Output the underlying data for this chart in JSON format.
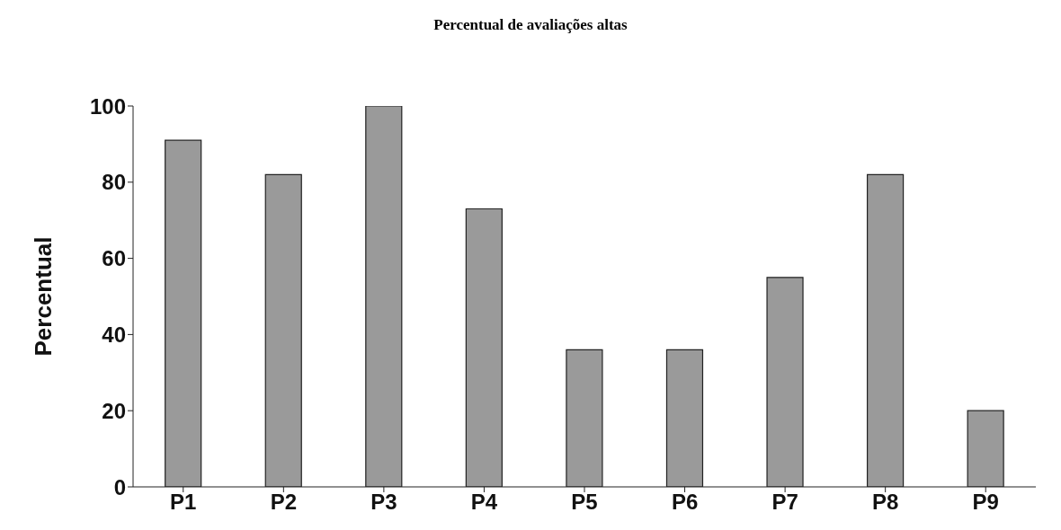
{
  "chart_data": {
    "type": "bar",
    "title": "Percentual de avaliações altas",
    "ylabel": "Percentual",
    "categories": [
      "P1",
      "P2",
      "P3",
      "P4",
      "P5",
      "P6",
      "P7",
      "P8",
      "P9"
    ],
    "values": [
      91,
      82,
      100,
      73,
      36,
      36,
      55,
      82,
      20
    ],
    "color": "#9a9a9a",
    "ylim": [
      0,
      100
    ],
    "yticks": [
      0,
      20,
      40,
      60,
      80,
      100
    ],
    "grid": false,
    "legend": false
  }
}
